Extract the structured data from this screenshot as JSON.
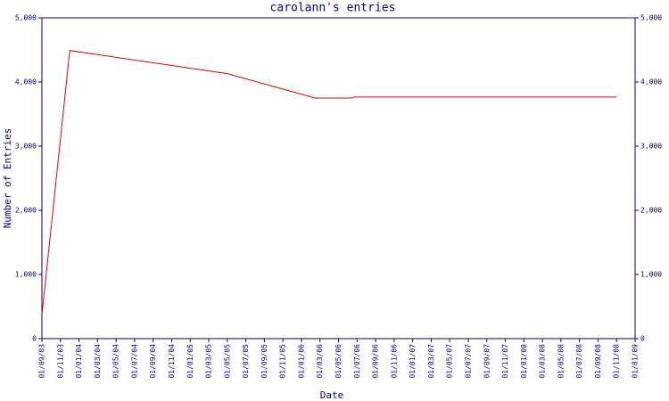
{
  "chart_data": {
    "type": "line",
    "title": "carolann's entries",
    "xlabel": "Date",
    "ylabel": "Number of Entries",
    "xlim": [
      "01/09/03",
      "01/01/09"
    ],
    "xticks": [
      "01/09/03",
      "01/11/03",
      "01/01/04",
      "01/03/04",
      "01/05/04",
      "01/07/04",
      "01/09/04",
      "01/11/04",
      "01/01/05",
      "01/03/05",
      "01/05/05",
      "01/07/05",
      "01/09/05",
      "01/11/05",
      "01/01/06",
      "01/03/06",
      "01/05/06",
      "01/07/06",
      "01/09/06",
      "01/11/06",
      "01/01/07",
      "01/03/07",
      "01/05/07",
      "01/07/07",
      "01/09/07",
      "01/11/07",
      "01/01/08",
      "01/03/08",
      "01/05/08",
      "01/07/08",
      "01/09/08",
      "01/11/08",
      "01/01/09"
    ],
    "ylim": [
      0,
      5000
    ],
    "yticks": [
      0,
      {
        "value": 1000,
        "label": "1,000"
      },
      {
        "value": 2000,
        "label": "2,000"
      },
      {
        "value": 3000,
        "label": "3,000"
      },
      {
        "value": 4000,
        "label": "4,000"
      },
      {
        "value": 5000,
        "label": "5,000"
      }
    ],
    "x": [
      "01/09/03",
      "01/12/03",
      "01/05/05",
      "15/02/06",
      "15/06/06",
      "20/06/06",
      "01/11/08"
    ],
    "series": [
      {
        "color": "#dd0000",
        "values": [
          370,
          4490,
          4130,
          3750,
          3750,
          3765,
          3765
        ]
      }
    ]
  }
}
